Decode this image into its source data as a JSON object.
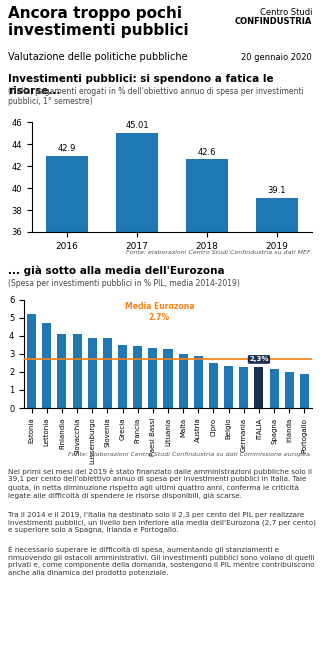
{
  "title": "Ancora troppo pochi\ninvestimenti pubblici",
  "subtitle": "Valutazione delle politiche pubbliche",
  "annotations": [
    "20 gennaio 2020",
    "Centro Studi",
    "CONFINDUSTRIA",
    "Nei primi sei mesi del 2019 è stato finanziato dalle amministrazioni pubbliche solo il 39,1 per cento dell'obiettivo annuo di spesa per investimenti pubblici in Italia. Tale quota, in netta diminuzione rispetto agli ultimi quattro anni, conferma le criticità legate alle difficoltà di spendere le risorse disponibili, già scarse.",
    "Tra il 2014 e il 2019, l'Italia ha destinato solo il 2,3 per cento del PIL per realizzare investimenti pubblici, un livello ben inferiore alla media dell'Eurozona (2,7 per cento) e superiore solo a Spagna, Irlanda e Portogallo.",
    "È necessario superare le difficoltà di spesa, aumentando gli stanziamenti e rimuovendo gli ostacoli amministrativi. Gli investimenti pubblici sono volano di quelli privati e, come componente della domanda, sostengono il PIL mentre contribuiscono anche alla dinamica del prodotto potenziale."
  ],
  "chart_data": [
    {
      "type": "bar",
      "title": "Investimenti pubblici: si spendono a fatica le risorse...",
      "subtitle": "(Italia, pagamenti erogati in % dell'obiettivo annuo di spesa per investimenti pubblici, 1° semestre)",
      "categories": [
        "2016",
        "2017",
        "2018",
        "2019"
      ],
      "values": [
        42.9,
        45.01,
        42.6,
        39.1
      ],
      "color": "#1f77b4",
      "ylim": [
        36,
        46
      ],
      "yticks": [
        36,
        38,
        40,
        42,
        44,
        46
      ],
      "data_labels": true,
      "grid": false,
      "annotations": [
        "Fonte: elaborazioni Centro Studi Confindustria su dati MEF."
      ]
    },
    {
      "type": "bar",
      "title": "... già sotto alla media dell'Eurozona",
      "subtitle": "(Spesa per investimenti pubblici in % PIL, media 2014-2019)",
      "categories": [
        "Estonia",
        "Lettonia",
        "Finlandia",
        "Slovacchia",
        "Lussemburgo",
        "Slovenia",
        "Grecia",
        "Francia",
        "Paesi Bassi",
        "Lituania",
        "Malta",
        "Austria",
        "Cipro",
        "Belgio",
        "Germania",
        "ITALIA",
        "Spagna",
        "Irlanda",
        "Portogallo"
      ],
      "values": [
        5.2,
        4.7,
        4.1,
        4.1,
        3.9,
        3.9,
        3.5,
        3.45,
        3.35,
        3.3,
        3.0,
        2.9,
        2.5,
        2.35,
        2.3,
        2.3,
        2.15,
        2.0,
        1.9
      ],
      "colors": [
        "#1f77b4",
        "#1f77b4",
        "#1f77b4",
        "#1f77b4",
        "#1f77b4",
        "#1f77b4",
        "#1f77b4",
        "#1f77b4",
        "#1f77b4",
        "#1f77b4",
        "#1f77b4",
        "#1f77b4",
        "#1f77b4",
        "#1f77b4",
        "#1f77b4",
        "#1b2f4e",
        "#1f77b4",
        "#1f77b4",
        "#1f77b4"
      ],
      "data_labels": true,
      "value_labels": [
        null,
        null,
        null,
        null,
        null,
        null,
        null,
        null,
        null,
        null,
        null,
        null,
        null,
        null,
        null,
        "2,3%",
        null,
        null,
        null
      ],
      "mean": 2.7,
      "mean_label": "Media Eurozona",
      "mean_value_label": "2.7%",
      "mean_color": "#ff7f0e",
      "ylim": [
        0,
        6
      ],
      "yticks": [
        0,
        1,
        2,
        3,
        4,
        5,
        6
      ],
      "grid": false,
      "annotations": [
        "Fonte: elaborazioni Centro Studi Confindustria su dati Commissione europea."
      ]
    }
  ]
}
